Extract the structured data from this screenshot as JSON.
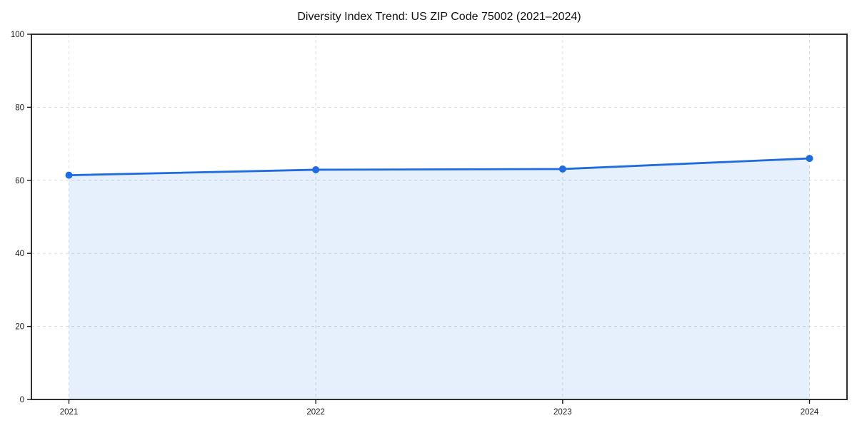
{
  "page": {
    "background": "#ffffff"
  },
  "chart_data": {
    "type": "area",
    "title": "Diversity Index Trend: US ZIP Code 75002 (2021–2024)",
    "categories": [
      "2021",
      "2022",
      "2023",
      "2024"
    ],
    "series": [
      {
        "name": "Diversity Index",
        "values": [
          61.4,
          62.9,
          63.1,
          66.0
        ]
      }
    ],
    "xlabel": "",
    "ylabel": "",
    "ylim": [
      0,
      100
    ],
    "yticks": [
      0,
      20,
      40,
      60,
      80,
      100
    ],
    "grid": "dashed",
    "legend": "none",
    "colors": {
      "line": "#1f6ce0",
      "marker": "#1f6ce0",
      "fill": "rgba(31,108,224,0.11)",
      "gridline": "#dcdcdc",
      "axis": "#1a1a1a",
      "text": "#111111"
    }
  }
}
